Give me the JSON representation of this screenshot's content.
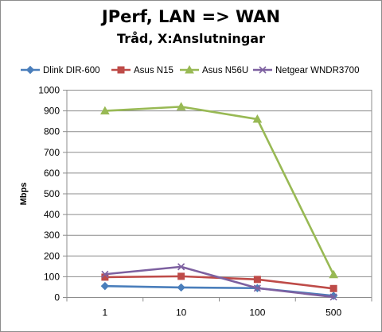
{
  "chart_data": {
    "type": "line",
    "title": "JPerf, LAN => WAN",
    "subtitle": "Tråd, X:Anslutningar",
    "ylabel": "Mbps",
    "xlabel": "",
    "categories": [
      "1",
      "10",
      "100",
      "500"
    ],
    "ylim": [
      0,
      1000
    ],
    "yticks": [
      0,
      100,
      200,
      300,
      400,
      500,
      600,
      700,
      800,
      900,
      1000
    ],
    "grid": true,
    "legend_position": "top",
    "series": [
      {
        "name": "Dlink DIR-600",
        "values": [
          55,
          48,
          45,
          8
        ],
        "color": "#4a7ebb",
        "marker": "diamond"
      },
      {
        "name": "Asus N15",
        "values": [
          98,
          102,
          87,
          43
        ],
        "color": "#be4b48",
        "marker": "square"
      },
      {
        "name": "Asus N56U",
        "values": [
          900,
          920,
          860,
          110
        ],
        "color": "#98b954",
        "marker": "triangle"
      },
      {
        "name": "Netgear WNDR3700",
        "values": [
          112,
          148,
          45,
          2
        ],
        "color": "#7d60a0",
        "marker": "x"
      }
    ]
  }
}
